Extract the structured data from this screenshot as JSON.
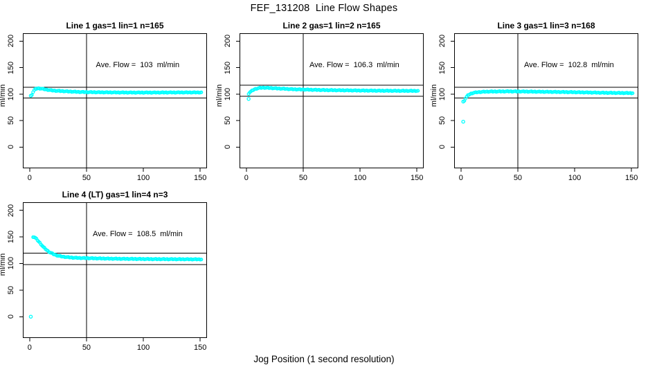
{
  "chart_data": {
    "type": "scatter",
    "title": "FEF_131208  Line Flow Shapes",
    "xlabel": "Jog Position (1 second resolution)",
    "ylabel": "ml/min",
    "point_color": "#00FFFF",
    "axis_color": "#000000",
    "background_color": "#FFFFFF",
    "xlim": [
      -6,
      156
    ],
    "ylim": [
      -40,
      215
    ],
    "xticks": [
      0,
      50,
      100,
      150
    ],
    "xtick_labels": [
      "0",
      "50",
      "100",
      "150"
    ],
    "yticks": [
      0,
      50,
      100,
      150,
      200
    ],
    "ytick_labels": [
      "0",
      "50",
      "100",
      "150",
      "200"
    ],
    "grid": false,
    "legend": "none",
    "vline_x": 50,
    "panels": [
      {
        "title": "Line 1 gas=1 lin=1 n=165",
        "n": 165,
        "ave_flow": 103,
        "annotation": "Ave. Flow =  103  ml/min",
        "ref_lines": [
          113.3,
          92.7
        ],
        "outliers": [
          [
            1,
            97
          ]
        ],
        "curve": [
          [
            2,
            99
          ],
          [
            3,
            104
          ],
          [
            4,
            107.5
          ],
          [
            5,
            109.5
          ],
          [
            7,
            111
          ],
          [
            10,
            110.5
          ],
          [
            14,
            108.8
          ],
          [
            18,
            107.5
          ],
          [
            22,
            106.5
          ],
          [
            26,
            106
          ],
          [
            30,
            105.5
          ],
          [
            36,
            104.8
          ],
          [
            42,
            104.2
          ],
          [
            50,
            103.8
          ],
          [
            60,
            103.5
          ],
          [
            75,
            103.2
          ],
          [
            90,
            103
          ],
          [
            110,
            103
          ],
          [
            130,
            103.2
          ],
          [
            151,
            103.2
          ]
        ]
      },
      {
        "title": "Line 2 gas=1 lin=2 n=165",
        "n": 165,
        "ave_flow": 106.3,
        "annotation": "Ave. Flow =  106.3  ml/min",
        "ref_lines": [
          116.9,
          95.7
        ],
        "outliers": [
          [
            2,
            91
          ]
        ],
        "curve": [
          [
            2,
            101
          ],
          [
            3,
            103.5
          ],
          [
            5,
            106.5
          ],
          [
            7,
            109
          ],
          [
            9,
            110.5
          ],
          [
            12,
            111.8
          ],
          [
            15,
            112.2
          ],
          [
            19,
            111.8
          ],
          [
            24,
            111.2
          ],
          [
            29,
            110.5
          ],
          [
            34,
            110
          ],
          [
            40,
            109.3
          ],
          [
            48,
            108.8
          ],
          [
            58,
            108.2
          ],
          [
            70,
            107.6
          ],
          [
            85,
            107.2
          ],
          [
            100,
            106.8
          ],
          [
            120,
            106.4
          ],
          [
            135,
            106.2
          ],
          [
            151,
            106.2
          ]
        ]
      },
      {
        "title": "Line 3 gas=1 lin=3 n=168",
        "n": 168,
        "ave_flow": 102.8,
        "annotation": "Ave. Flow =  102.8  ml/min",
        "ref_lines": [
          113.1,
          92.5
        ],
        "outliers": [
          [
            2,
            48
          ],
          [
            2,
            86
          ]
        ],
        "curve": [
          [
            3,
            88
          ],
          [
            4,
            92
          ],
          [
            5,
            95
          ],
          [
            6,
            97.5
          ],
          [
            7,
            99
          ],
          [
            9,
            101
          ],
          [
            11,
            102.5
          ],
          [
            14,
            103.5
          ],
          [
            18,
            104.2
          ],
          [
            24,
            104.8
          ],
          [
            32,
            105
          ],
          [
            42,
            105.2
          ],
          [
            52,
            105
          ],
          [
            65,
            104.6
          ],
          [
            80,
            104.2
          ],
          [
            95,
            103.8
          ],
          [
            110,
            103.2
          ],
          [
            125,
            102.6
          ],
          [
            140,
            102.2
          ],
          [
            151,
            102
          ]
        ]
      },
      {
        "title": "Line 4 (LT) gas=1 lin=4 n=3",
        "n": 3,
        "ave_flow": 108.5,
        "annotation": "Ave. Flow =  108.5  ml/min",
        "ref_lines": [
          119.4,
          97.7
        ],
        "outliers": [
          [
            1,
            0
          ]
        ],
        "curve": [
          [
            3,
            150
          ],
          [
            4,
            149.5
          ],
          [
            5,
            148
          ],
          [
            6,
            146
          ],
          [
            7,
            143.5
          ],
          [
            8,
            141
          ],
          [
            9,
            138.5
          ],
          [
            10,
            136
          ],
          [
            11,
            133.5
          ],
          [
            12,
            131
          ],
          [
            13,
            129
          ],
          [
            14,
            127
          ],
          [
            15,
            125
          ],
          [
            16,
            123.5
          ],
          [
            17,
            122
          ],
          [
            18,
            120.5
          ],
          [
            19,
            119.5
          ],
          [
            20,
            118.5
          ],
          [
            22,
            116.5
          ],
          [
            24,
            115
          ],
          [
            26,
            114
          ],
          [
            28,
            113.2
          ],
          [
            30,
            112.5
          ],
          [
            33,
            111.8
          ],
          [
            36,
            111.2
          ],
          [
            40,
            110.6
          ],
          [
            45,
            110.2
          ],
          [
            50,
            110
          ],
          [
            56,
            109.6
          ],
          [
            63,
            109.3
          ],
          [
            70,
            109
          ],
          [
            80,
            108.7
          ],
          [
            90,
            108.5
          ],
          [
            100,
            108.3
          ],
          [
            110,
            108.1
          ],
          [
            120,
            108
          ],
          [
            130,
            107.9
          ],
          [
            140,
            107.8
          ],
          [
            151,
            107.7
          ]
        ]
      }
    ]
  }
}
